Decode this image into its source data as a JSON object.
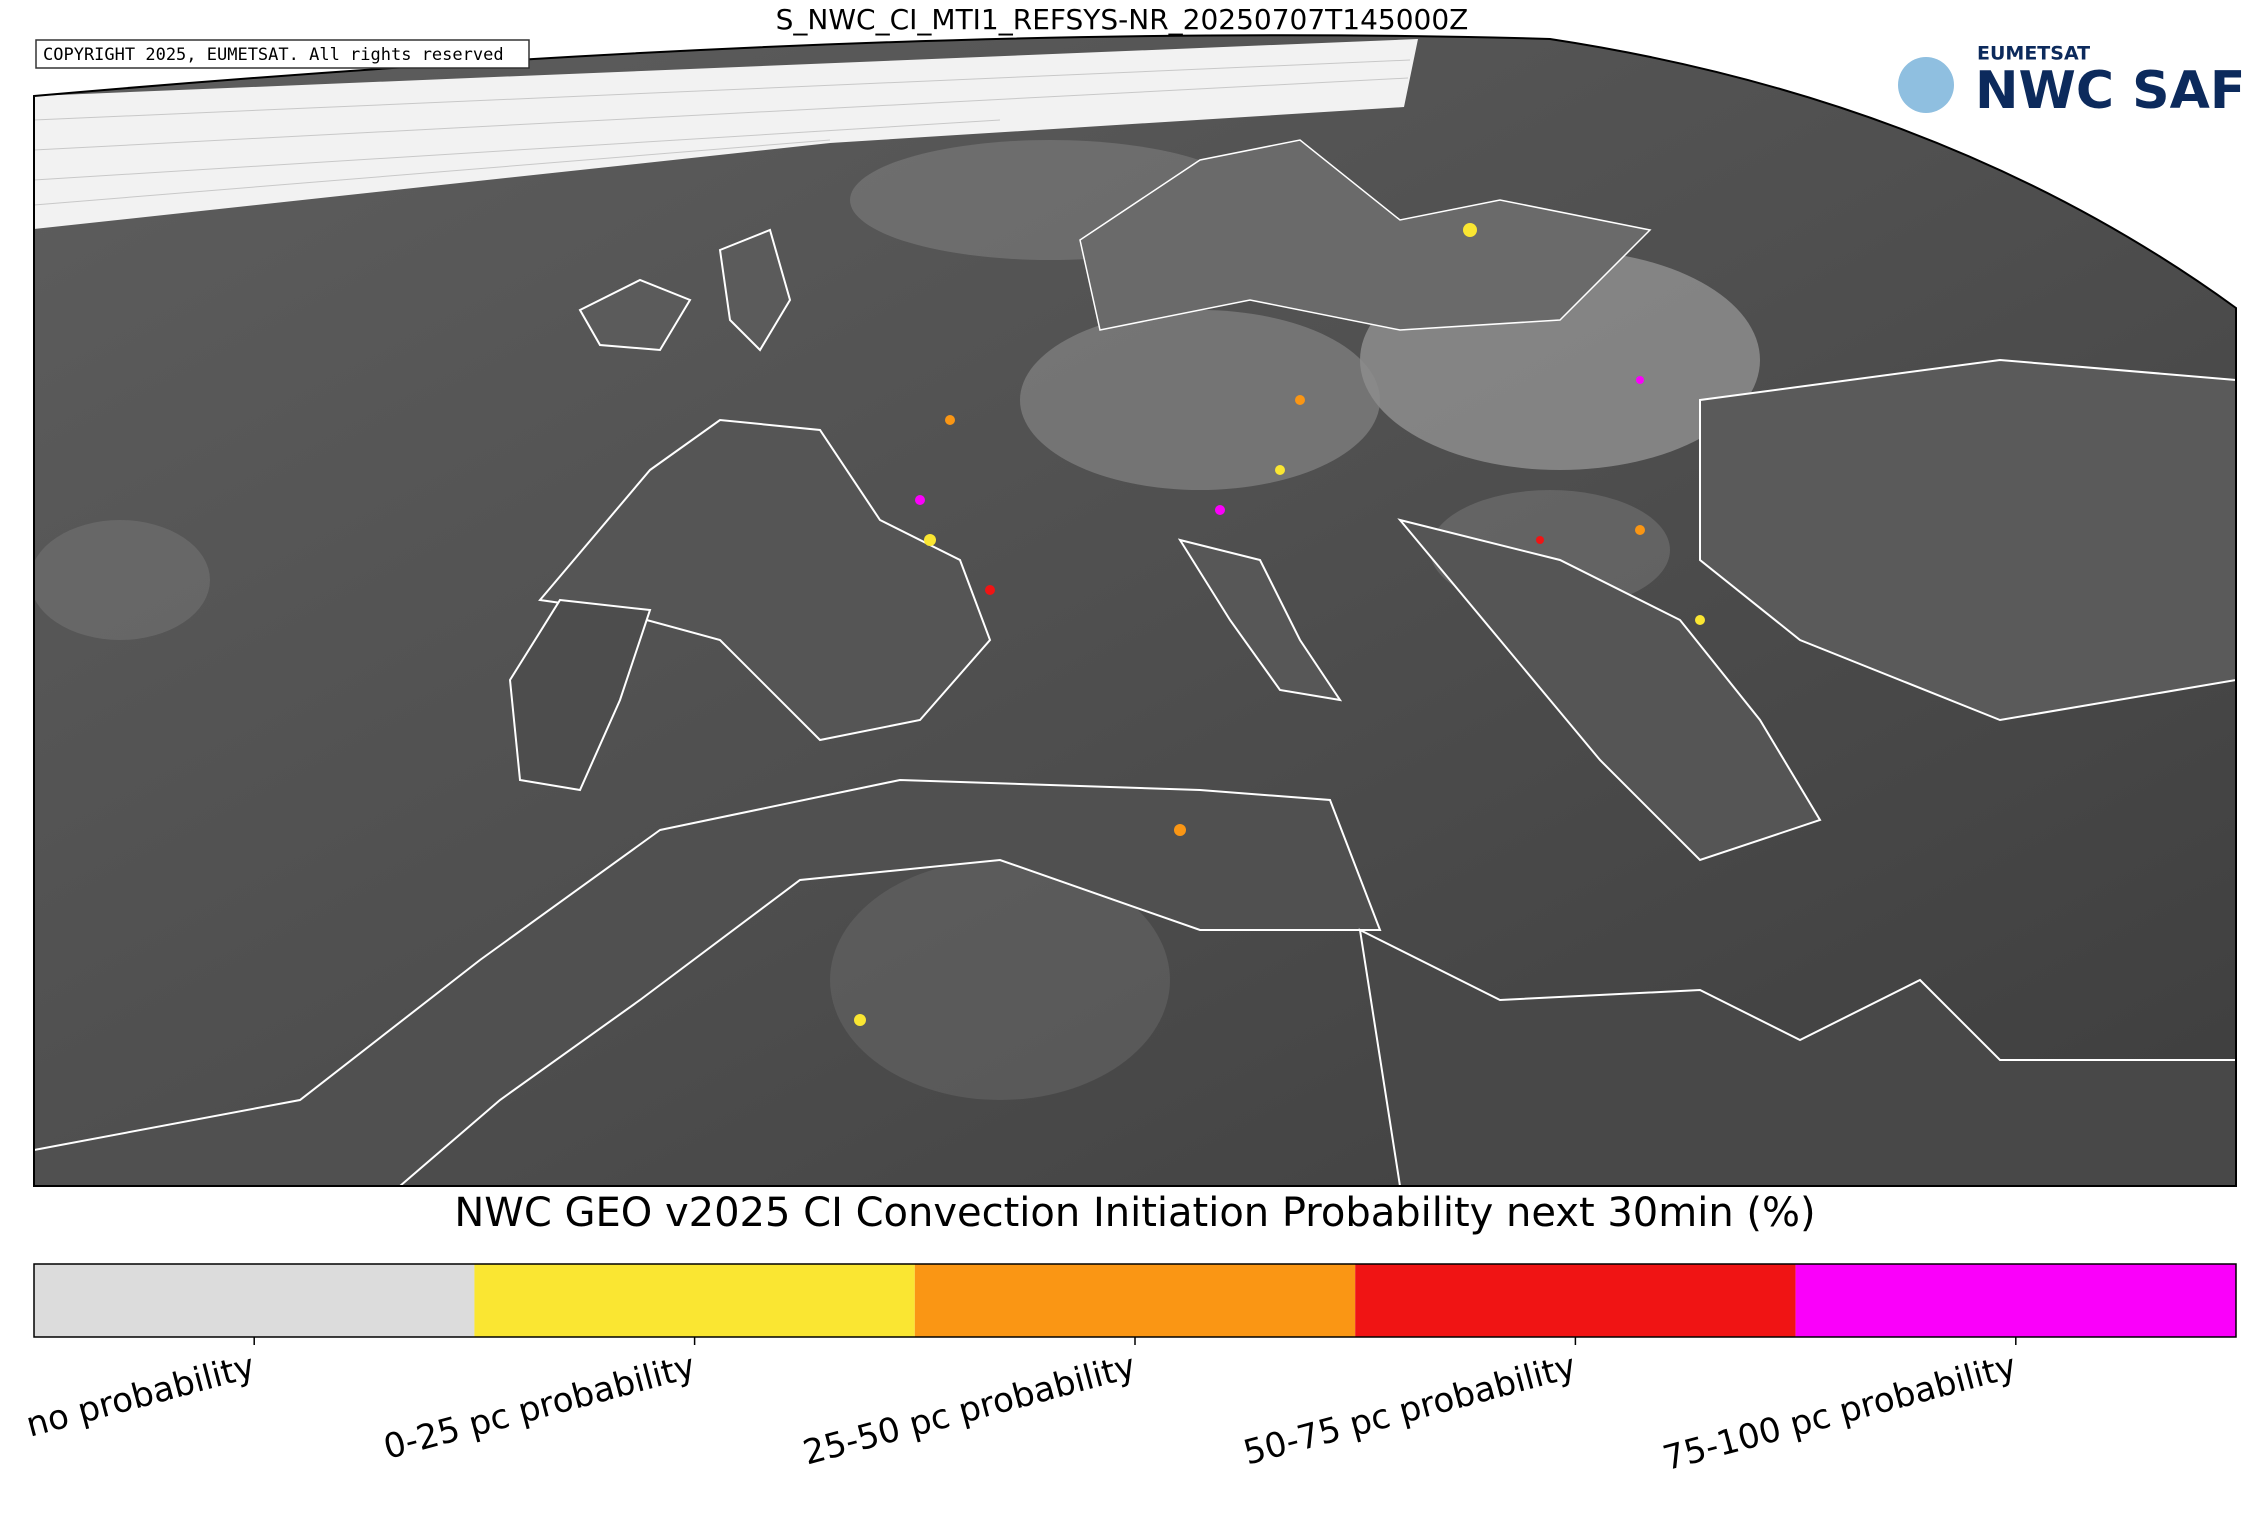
{
  "header": {
    "title": "S_NWC_CI_MTI1_REFSYS-NR_20250707T145000Z",
    "copyright": "COPYRIGHT 2025, EUMETSAT. All rights reserved"
  },
  "logo": {
    "org": "EUMETSAT",
    "name": "NWC SAF"
  },
  "colorbar": {
    "title": "NWC GEO v2025 CI Convection Initiation Probability next 30min (%)",
    "entries": [
      {
        "label": "no probability",
        "color": "#dcdcdc"
      },
      {
        "label": "0-25 pc probability",
        "color": "#fae632"
      },
      {
        "label": "25-50 pc probability",
        "color": "#fa9614"
      },
      {
        "label": "50-75 pc probability",
        "color": "#f01414"
      },
      {
        "label": "75-100 pc probability",
        "color": "#fa00fa"
      }
    ]
  }
}
